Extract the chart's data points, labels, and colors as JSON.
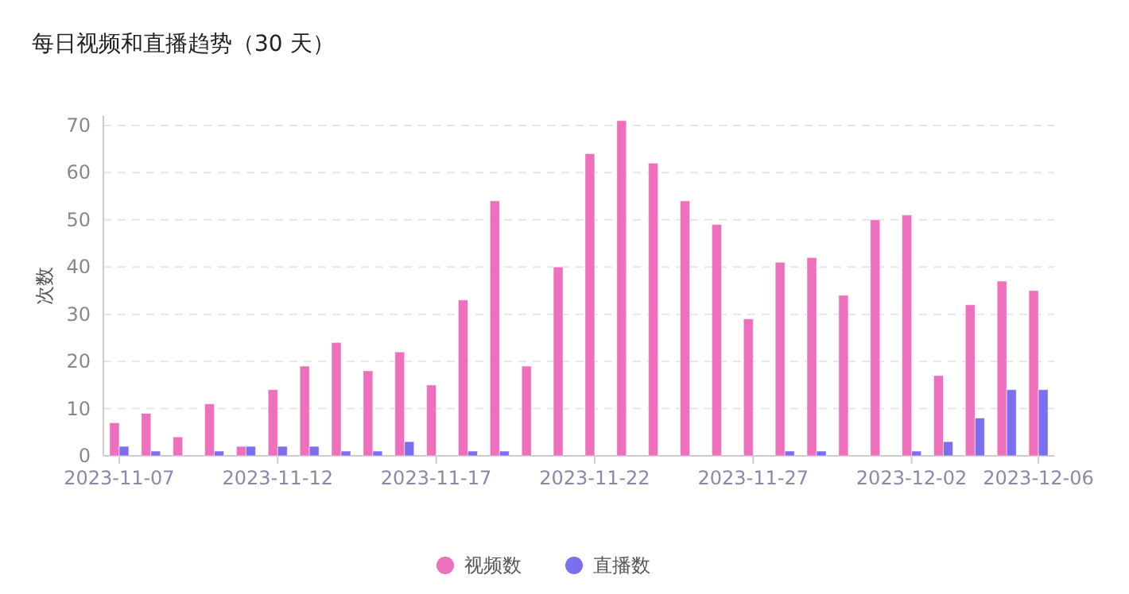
{
  "chart_data": {
    "type": "bar",
    "title": "每日视频和直播趋势（30 天）",
    "ylabel": "次数",
    "categories": [
      "2023-11-07",
      null,
      null,
      null,
      null,
      "2023-11-12",
      null,
      null,
      null,
      null,
      "2023-11-17",
      null,
      null,
      null,
      null,
      "2023-11-22",
      null,
      null,
      null,
      null,
      "2023-11-27",
      null,
      null,
      null,
      null,
      "2023-12-02",
      null,
      null,
      null,
      "2023-12-06"
    ],
    "series": [
      {
        "name": "视频数",
        "color": "#ee6fbb",
        "values": [
          7,
          9,
          4,
          11,
          2,
          14,
          19,
          24,
          18,
          22,
          15,
          33,
          54,
          19,
          40,
          64,
          71,
          62,
          54,
          49,
          29,
          41,
          42,
          34,
          50,
          51,
          17,
          32,
          37,
          35
        ]
      },
      {
        "name": "直播数",
        "color": "#7b6ff0",
        "values": [
          2,
          1,
          0,
          1,
          2,
          2,
          2,
          1,
          1,
          3,
          0,
          1,
          1,
          0,
          0,
          0,
          0,
          0,
          0,
          0,
          0,
          1,
          1,
          0,
          0,
          1,
          3,
          8,
          14,
          14
        ]
      }
    ],
    "ylim": [
      0,
      72
    ],
    "yticks": [
      0,
      10,
      20,
      30,
      40,
      50,
      60,
      70
    ],
    "grid": "y",
    "legend": "bottom"
  }
}
